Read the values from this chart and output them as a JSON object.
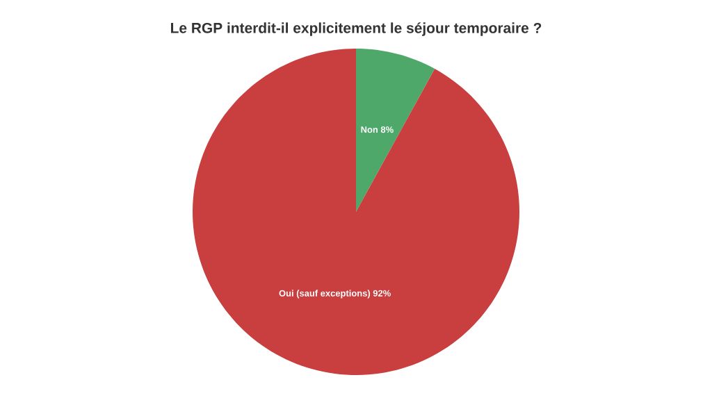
{
  "chart_data": {
    "type": "pie",
    "title": "Le RGP interdit-il explicitement le séjour temporaire ?",
    "categories": [
      "Non",
      "Oui (sauf exceptions)"
    ],
    "values": [
      8,
      92
    ],
    "colors": [
      "#4ea86a",
      "#c93e3e"
    ],
    "value_labels": [
      "8%",
      "92%"
    ]
  }
}
